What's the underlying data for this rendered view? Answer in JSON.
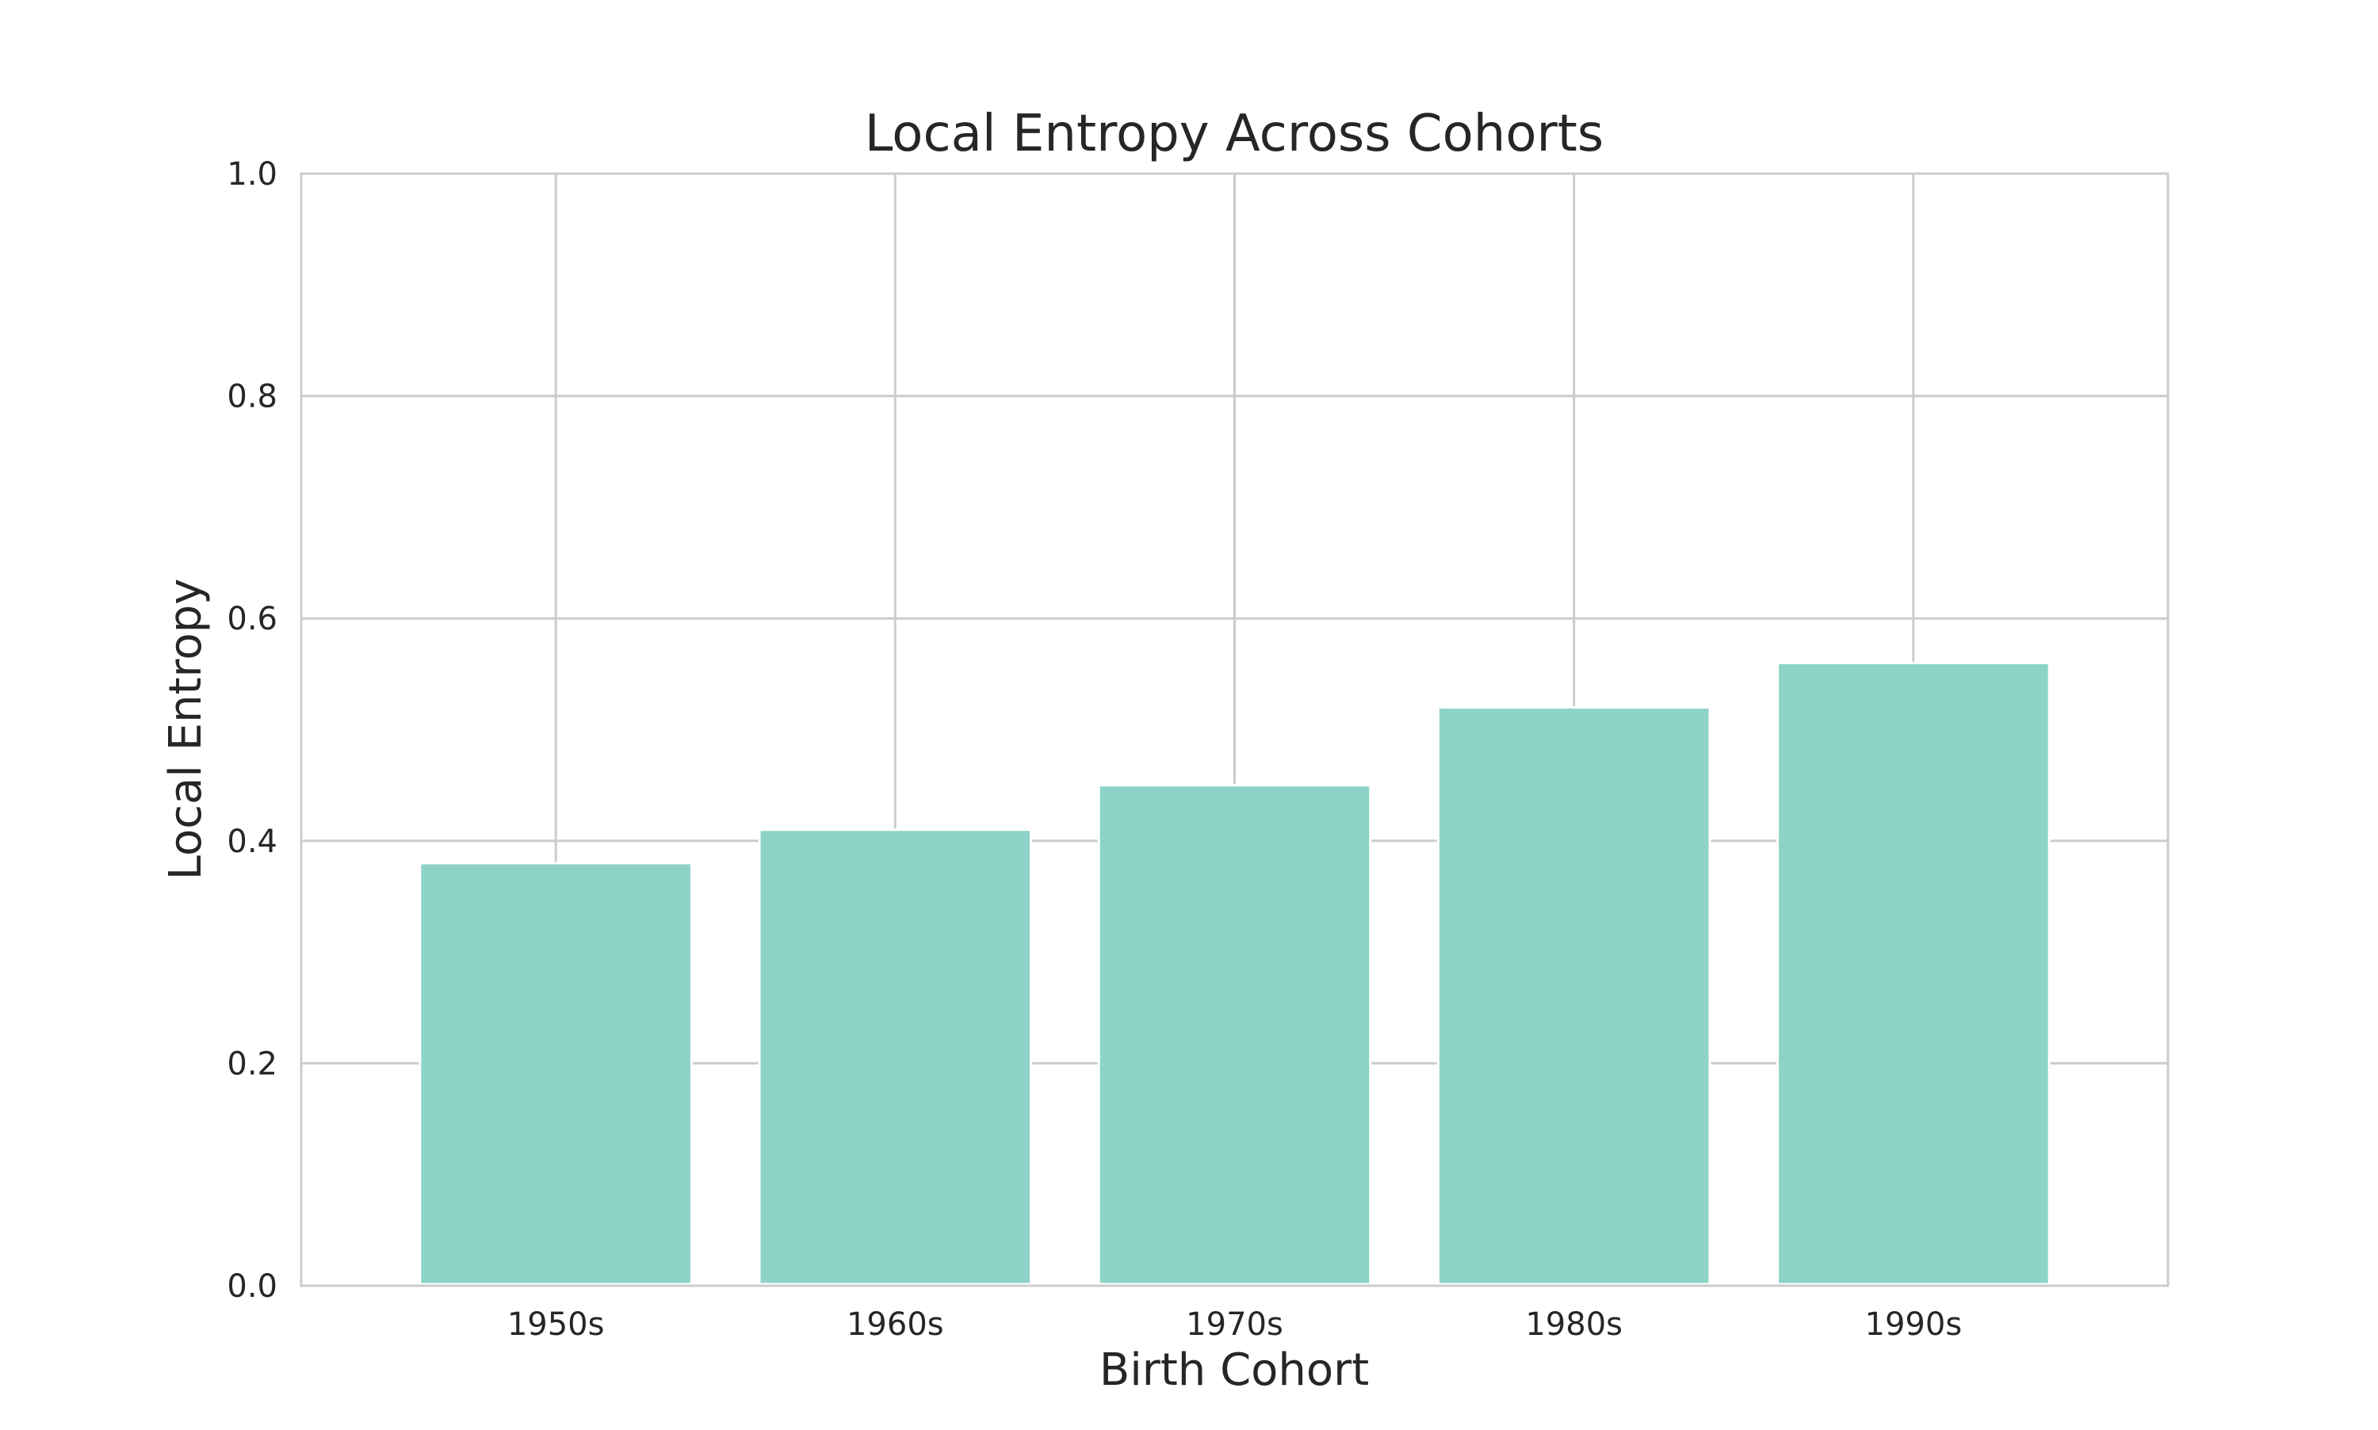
{
  "chart_data": {
    "type": "bar",
    "title": "Local Entropy Across Cohorts",
    "xlabel": "Birth Cohort",
    "ylabel": "Local Entropy",
    "categories": [
      "1950s",
      "1960s",
      "1970s",
      "1980s",
      "1990s"
    ],
    "values": [
      0.38,
      0.41,
      0.45,
      0.52,
      0.56
    ],
    "ylim": [
      0.0,
      1.0
    ],
    "yticks": [
      "0.0",
      "0.2",
      "0.4",
      "0.6",
      "0.8",
      "1.0"
    ],
    "grid": true,
    "legend": "none",
    "bar_color": "#8dd3c7",
    "background": "#ffffff"
  }
}
